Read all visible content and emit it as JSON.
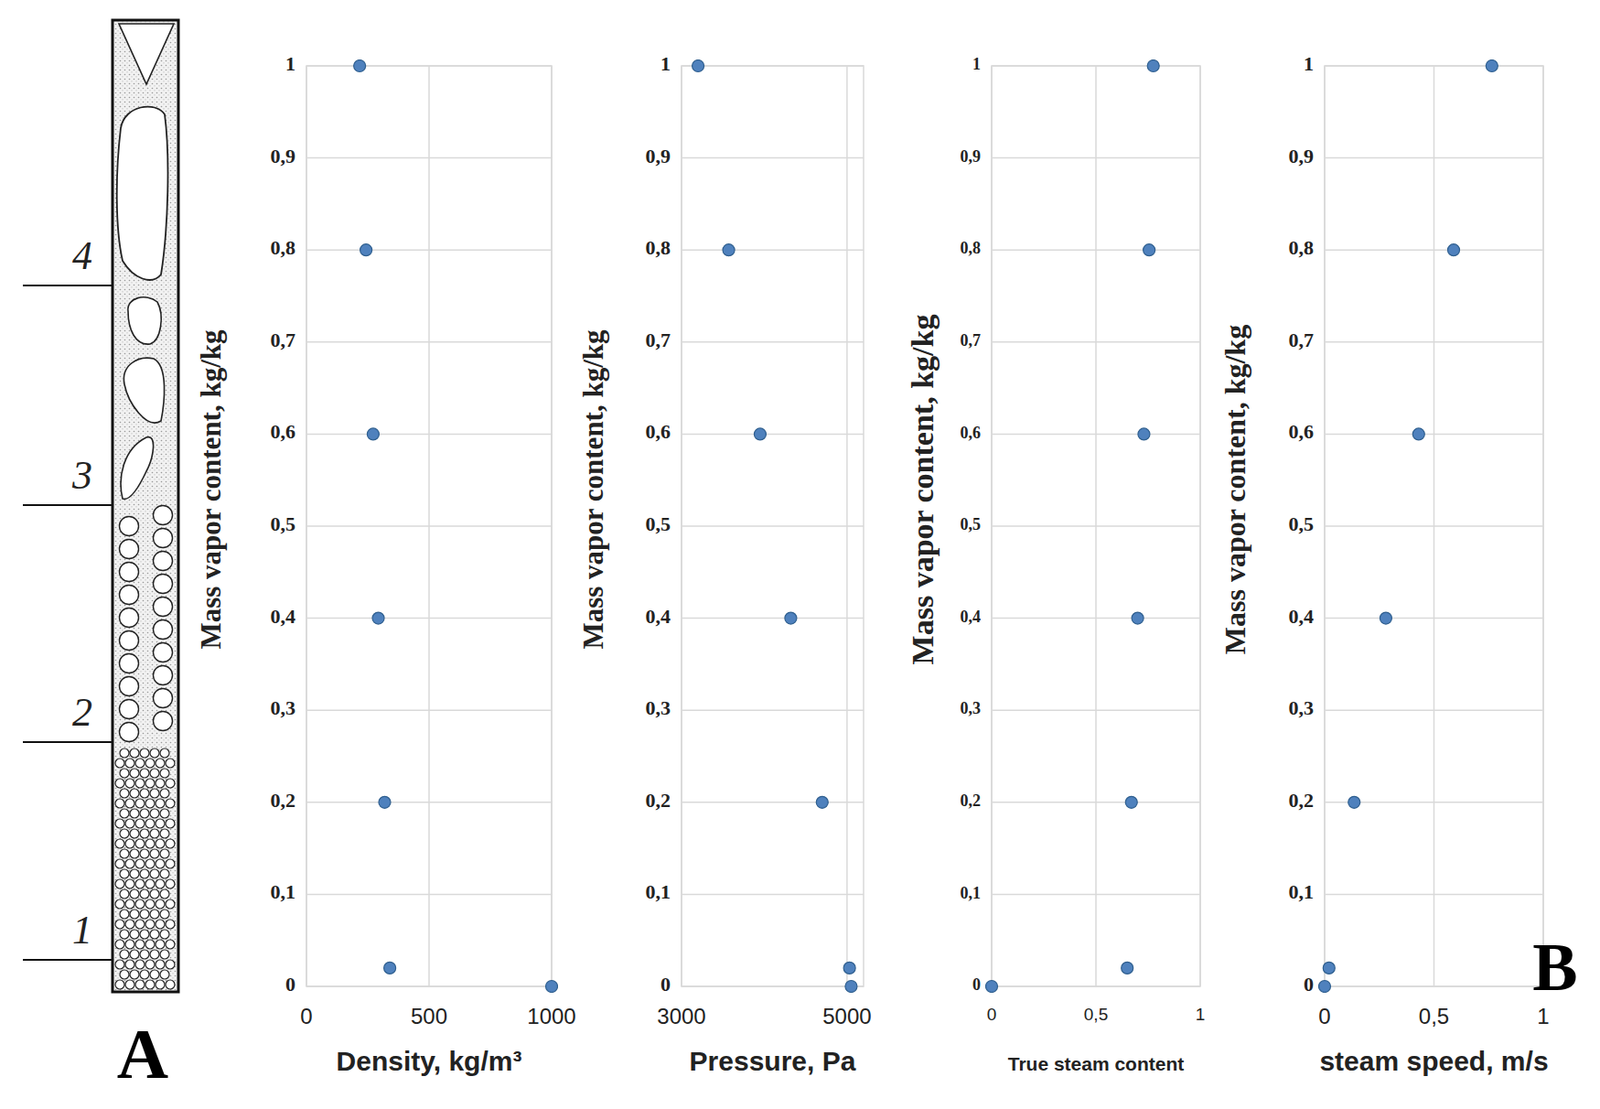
{
  "diagram": {
    "letter": "A",
    "zone_labels": [
      "1",
      "2",
      "3",
      "4"
    ]
  },
  "chart_data": [
    {
      "type": "scatter",
      "x_label": "Density, kg/m³",
      "y_label": "Mass vapor content, kg/kg",
      "x": [
        1000,
        340,
        319,
        293,
        272,
        243,
        217
      ],
      "values": [
        0,
        0.02,
        0.2,
        0.4,
        0.6,
        0.8,
        1
      ],
      "color": "#4f81bd",
      "marker": "circle",
      "xlim": [
        0,
        1000
      ],
      "xticks": [
        0,
        500,
        1000
      ],
      "ylim": [
        0,
        1
      ],
      "yticks": [
        0,
        {
          "value": 0.1,
          "label": "0,1"
        },
        {
          "value": 0.2,
          "label": "0,2"
        },
        {
          "value": 0.3,
          "label": "0,3"
        },
        {
          "value": 0.4,
          "label": "0,4"
        },
        {
          "value": 0.5,
          "label": "0,5"
        },
        {
          "value": 0.6,
          "label": "0,6"
        },
        {
          "value": 0.7,
          "label": "0,7"
        },
        {
          "value": 0.8,
          "label": "0,8"
        },
        {
          "value": 0.9,
          "label": "0,9"
        },
        1
      ],
      "grid": true
    },
    {
      "type": "scatter",
      "x_label": "Pressure, Pa",
      "y_label": "Mass vapor content, kg/kg",
      "x": [
        5050,
        5030,
        4700,
        4320,
        3950,
        3570,
        3200
      ],
      "values": [
        0,
        0.02,
        0.2,
        0.4,
        0.6,
        0.8,
        1
      ],
      "color": "#4f81bd",
      "marker": "circle",
      "xlim": [
        3000,
        5200
      ],
      "xticks": [
        3000,
        5000
      ],
      "ylim": [
        0,
        1
      ],
      "yticks": [
        0,
        {
          "value": 0.1,
          "label": "0,1"
        },
        {
          "value": 0.2,
          "label": "0,2"
        },
        {
          "value": 0.3,
          "label": "0,3"
        },
        {
          "value": 0.4,
          "label": "0,4"
        },
        {
          "value": 0.5,
          "label": "0,5"
        },
        {
          "value": 0.6,
          "label": "0,6"
        },
        {
          "value": 0.7,
          "label": "0,7"
        },
        {
          "value": 0.8,
          "label": "0,8"
        },
        {
          "value": 0.9,
          "label": "0,9"
        },
        1
      ],
      "grid": true
    },
    {
      "type": "scatter",
      "x_label": "True steam content",
      "y_label": "Mass vapor content, kg/kg",
      "x": [
        0,
        0.65,
        0.67,
        0.7,
        0.73,
        0.755,
        0.775
      ],
      "values": [
        0,
        0.02,
        0.2,
        0.4,
        0.6,
        0.8,
        1
      ],
      "color": "#4f81bd",
      "marker": "circle",
      "xlim": [
        0,
        1
      ],
      "xticks": [
        0,
        {
          "value": 0.5,
          "label": "0,5"
        },
        1
      ],
      "ylim": [
        0,
        1
      ],
      "yticks": [
        0,
        {
          "value": 0.1,
          "label": "0,1"
        },
        {
          "value": 0.2,
          "label": "0,2"
        },
        {
          "value": 0.3,
          "label": "0,3"
        },
        {
          "value": 0.4,
          "label": "0,4"
        },
        {
          "value": 0.5,
          "label": "0,5"
        },
        {
          "value": 0.6,
          "label": "0,6"
        },
        {
          "value": 0.7,
          "label": "0,7"
        },
        {
          "value": 0.8,
          "label": "0,8"
        },
        {
          "value": 0.9,
          "label": "0,9"
        },
        1
      ],
      "grid": true
    },
    {
      "type": "scatter",
      "x_label": "steam speed, m/s",
      "y_label": "Mass vapor content, kg/kg",
      "x": [
        0,
        0.02,
        0.135,
        0.28,
        0.43,
        0.59,
        0.765
      ],
      "values": [
        0,
        0.02,
        0.2,
        0.4,
        0.6,
        0.8,
        1
      ],
      "color": "#4f81bd",
      "marker": "circle",
      "xlim": [
        0,
        1
      ],
      "xticks": [
        0,
        {
          "value": 0.5,
          "label": "0,5"
        },
        1
      ],
      "ylim": [
        0,
        1
      ],
      "yticks": [
        0,
        {
          "value": 0.1,
          "label": "0,1"
        },
        {
          "value": 0.2,
          "label": "0,2"
        },
        {
          "value": 0.3,
          "label": "0,3"
        },
        {
          "value": 0.4,
          "label": "0,4"
        },
        {
          "value": 0.5,
          "label": "0,5"
        },
        {
          "value": 0.6,
          "label": "0,6"
        },
        {
          "value": 0.7,
          "label": "0,7"
        },
        {
          "value": 0.8,
          "label": "0,8"
        },
        {
          "value": 0.9,
          "label": "0,9"
        },
        1
      ],
      "grid": true,
      "annotations": [
        "B"
      ]
    }
  ]
}
